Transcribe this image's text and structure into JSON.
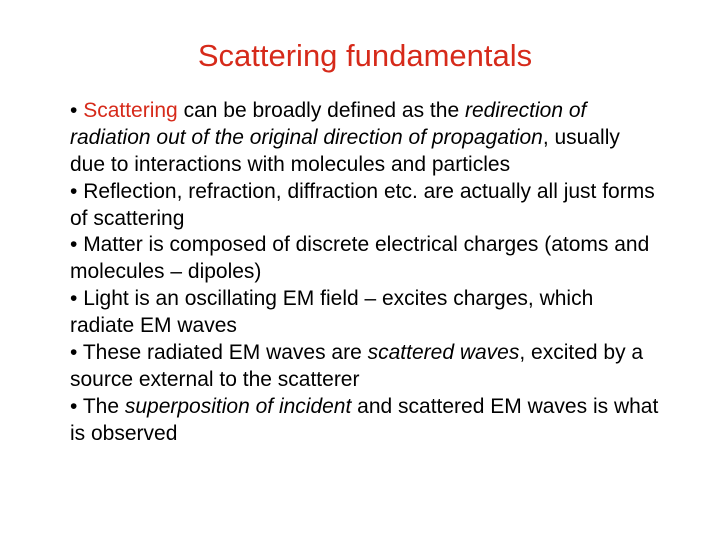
{
  "title": {
    "text": "Scattering fundamentals",
    "color": "#d62a1a",
    "fontsize": 31
  },
  "body": {
    "fontsize": 21,
    "color": "#000000",
    "bullets": [
      {
        "prefix": "• ",
        "parts": [
          {
            "t": "Scattering",
            "style": "red"
          },
          {
            "t": " can be broadly defined as the "
          },
          {
            "t": "redirection of radiation out of the original direction of propagation",
            "style": "italic"
          },
          {
            "t": ", usually due to interactions with molecules and particles"
          }
        ]
      },
      {
        "prefix": "• ",
        "parts": [
          {
            "t": "Reflection, refraction, diffraction etc. are actually all just forms of scattering"
          }
        ]
      },
      {
        "prefix": "• ",
        "parts": [
          {
            "t": "Matter is composed of discrete electrical charges (atoms and molecules – dipoles)"
          }
        ]
      },
      {
        "prefix": "• ",
        "parts": [
          {
            "t": "Light is an oscillating EM field – excites charges, which radiate EM waves"
          }
        ]
      },
      {
        "prefix": "• ",
        "parts": [
          {
            "t": "These radiated EM waves are "
          },
          {
            "t": "scattered waves",
            "style": "italic"
          },
          {
            "t": ", excited by a source external to the scatterer"
          }
        ]
      },
      {
        "prefix": "• ",
        "parts": [
          {
            "t": "The "
          },
          {
            "t": "superposition of incident",
            "style": "italic"
          },
          {
            "t": " and scattered EM waves is what is observed"
          }
        ]
      }
    ]
  }
}
